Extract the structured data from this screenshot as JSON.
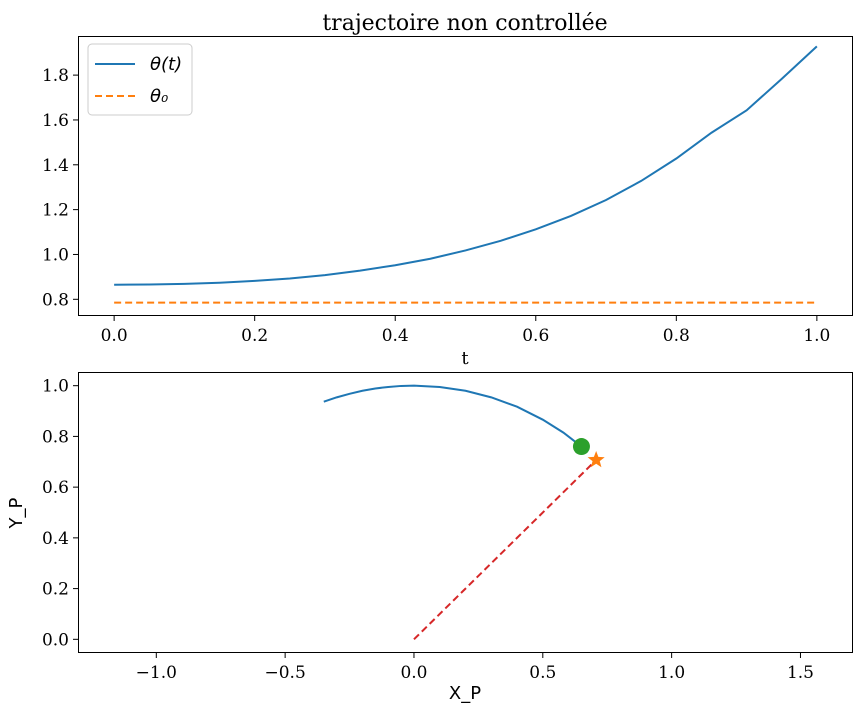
{
  "chart_data": [
    {
      "type": "line",
      "title": "trajectoire non controllée",
      "xlabel": "t",
      "ylabel": "",
      "xlim": [
        -0.05,
        1.05
      ],
      "ylim": [
        0.73,
        1.97
      ],
      "xticks": [
        0.0,
        0.2,
        0.4,
        0.6,
        0.8,
        1.0
      ],
      "xtick_labels": [
        "0.0",
        "0.2",
        "0.4",
        "0.6",
        "0.8",
        "1.0"
      ],
      "yticks": [
        0.8,
        1.0,
        1.2,
        1.4,
        1.6,
        1.8
      ],
      "ytick_labels": [
        "0.8",
        "1.0",
        "1.2",
        "1.4",
        "1.6",
        "1.8"
      ],
      "grid": false,
      "legend": "top-left",
      "series": [
        {
          "name": "θ(t)",
          "style": "solid",
          "color": "#1f77b4",
          "x": [
            0.0,
            0.05,
            0.1,
            0.15,
            0.2,
            0.25,
            0.3,
            0.35,
            0.4,
            0.45,
            0.5,
            0.55,
            0.6,
            0.65,
            0.7,
            0.75,
            0.8,
            0.85,
            0.9,
            0.95,
            1.0
          ],
          "y": [
            0.865,
            0.866,
            0.869,
            0.874,
            0.882,
            0.893,
            0.908,
            0.928,
            0.952,
            0.981,
            1.018,
            1.061,
            1.112,
            1.172,
            1.243,
            1.328,
            1.428,
            1.543,
            1.643,
            1.783,
            1.928
          ]
        },
        {
          "name": "θ₀",
          "style": "dashed",
          "color": "#ff7f0e",
          "x": [
            0.0,
            1.0
          ],
          "y": [
            0.785,
            0.785
          ]
        }
      ]
    },
    {
      "type": "line",
      "title": "",
      "xlabel": "X_P",
      "ylabel": "Y_P",
      "xlim": [
        -1.3,
        1.7
      ],
      "ylim": [
        -0.05,
        1.05
      ],
      "xticks": [
        -1.0,
        -0.5,
        0.0,
        0.5,
        1.0,
        1.5
      ],
      "xtick_labels": [
        "−1.0",
        "−0.5",
        "0.0",
        "0.5",
        "1.0",
        "1.5"
      ],
      "yticks": [
        0.0,
        0.2,
        0.4,
        0.6,
        0.8,
        1.0
      ],
      "ytick_labels": [
        "0.0",
        "0.2",
        "0.4",
        "0.6",
        "0.8",
        "1.0"
      ],
      "grid": false,
      "series": [
        {
          "style": "solid",
          "color": "#1f77b4",
          "x": [
            -0.35,
            -0.3,
            -0.25,
            -0.2,
            -0.15,
            -0.1,
            -0.05,
            0.0,
            0.1,
            0.2,
            0.3,
            0.4,
            0.5,
            0.58,
            0.65
          ],
          "y": [
            0.937,
            0.954,
            0.968,
            0.98,
            0.989,
            0.995,
            0.999,
            1.0,
            0.995,
            0.98,
            0.954,
            0.917,
            0.866,
            0.815,
            0.76
          ]
        },
        {
          "style": "dashed",
          "color": "#d62728",
          "x": [
            0.0,
            0.707
          ],
          "y": [
            0.0,
            0.707
          ]
        }
      ],
      "markers": [
        {
          "type": "circle",
          "color": "#2ca02c",
          "x": 0.65,
          "y": 0.76
        },
        {
          "type": "star",
          "color": "#ff7f0e",
          "x": 0.707,
          "y": 0.707
        }
      ]
    }
  ]
}
